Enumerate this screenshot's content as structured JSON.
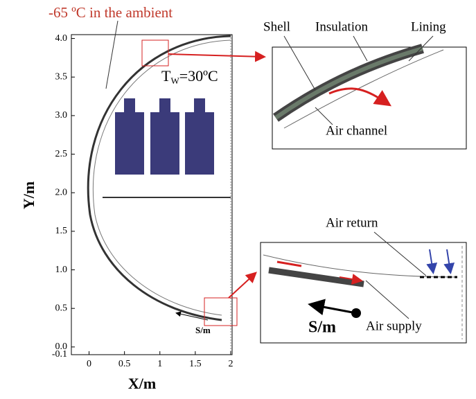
{
  "chart_data": {
    "type": "diagram",
    "annotations": {
      "ambient": "-65 ºC in the ambient",
      "wall_t": "T",
      "wall_sub": "W",
      "wall_rest": "=30ºC",
      "s_main": "S/m"
    },
    "x_label": "X/m",
    "y_label": "Y/m",
    "xlim": [
      -0.25,
      2.02
    ],
    "ylim": [
      -0.1,
      4.05
    ],
    "xticks": [
      0,
      0.5,
      1,
      1.5,
      2
    ],
    "yticks": [
      -0.1,
      {
        "value": 0,
        "label": "0.0"
      },
      0.5,
      {
        "value": 1,
        "label": "1.0"
      },
      1.5,
      {
        "value": 2,
        "label": "2.0"
      },
      2.5,
      {
        "value": 3,
        "label": "3.0"
      },
      3.5,
      {
        "value": 4,
        "label": "4.0"
      }
    ],
    "inset_top": {
      "shell": "Shell",
      "insulation": "Insulation",
      "lining": "Lining",
      "air_channel": "Air channel"
    },
    "inset_bottom": {
      "air_return": "Air return",
      "air_supply": "Air supply",
      "s": "S/m"
    }
  }
}
